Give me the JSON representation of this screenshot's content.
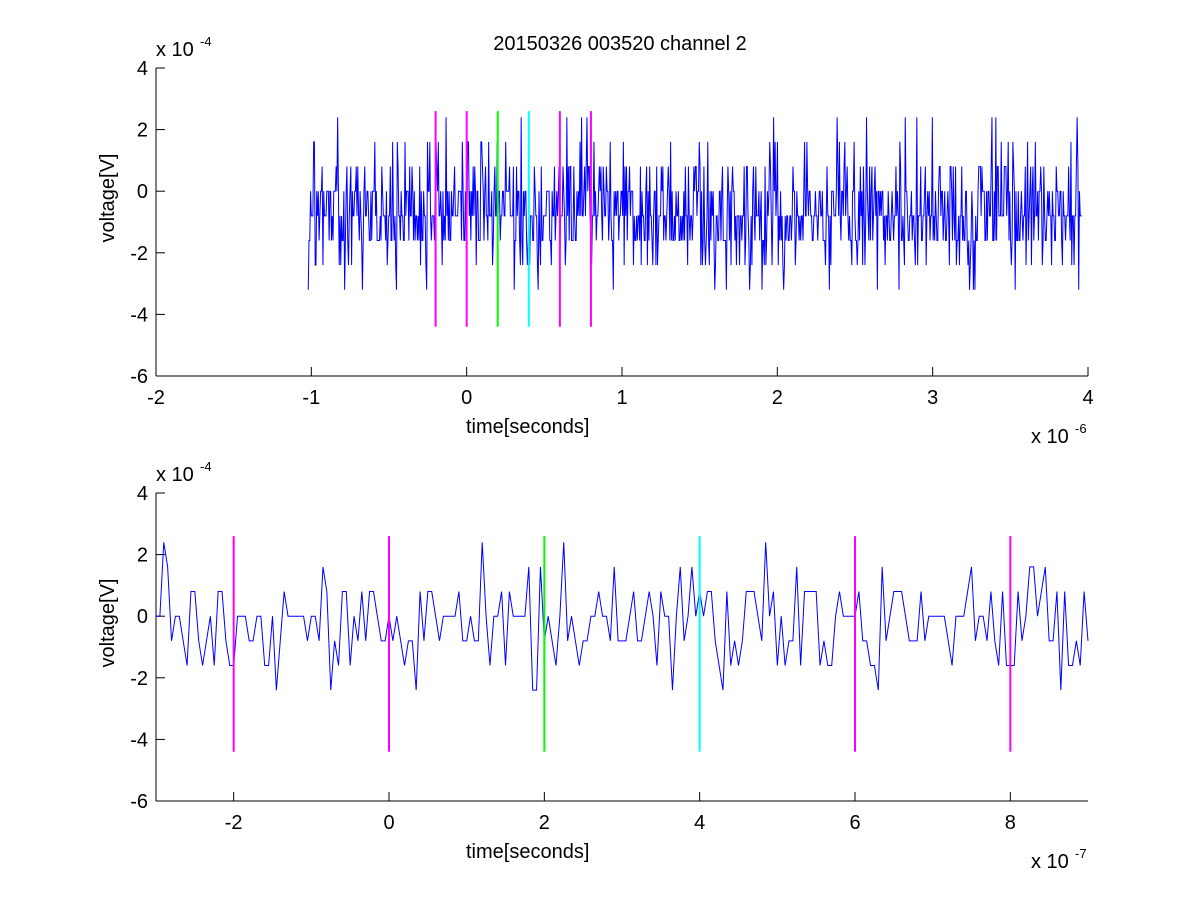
{
  "figure": {
    "title": "20150326 003520 channel 2"
  },
  "chart_data": [
    {
      "type": "line",
      "title": "20150326 003520 channel 2",
      "xlabel": "time[seconds]",
      "ylabel": "voltage[V]",
      "x_multiplier_label": "x 10",
      "x_multiplier_exp": "-6",
      "y_multiplier_label": "x 10",
      "y_multiplier_exp": "-4",
      "xlim": [
        -2e-06,
        4e-06
      ],
      "ylim": [
        -0.0006,
        0.0004
      ],
      "x_ticks": [
        -2e-06,
        -1e-06,
        0,
        1e-06,
        2e-06,
        3e-06,
        4e-06
      ],
      "x_tick_labels": [
        "-2",
        "-1",
        "0",
        "1",
        "2",
        "3",
        "4"
      ],
      "y_ticks": [
        -0.0006,
        -0.0004,
        -0.0002,
        0,
        0.0002,
        0.0004
      ],
      "y_tick_labels": [
        "-6",
        "-4",
        "-2",
        "0",
        "2",
        "4"
      ],
      "grid": false,
      "series": [
        {
          "color": "#0000ff",
          "x_start": -1.02e-06,
          "x_end": 3.96e-06,
          "n_points": 1000,
          "levels": [
            -0.0004,
            -0.00032,
            -0.00024,
            -0.00016,
            -8e-05,
            0,
            8e-05,
            0.00016,
            0.00024
          ],
          "level_weights": [
            0.004,
            0.02,
            0.09,
            0.22,
            0.28,
            0.22,
            0.12,
            0.035,
            0.01
          ]
        }
      ],
      "markers": [
        {
          "x": -2e-07,
          "color": "#ff00ff",
          "y_range": [
            -0.00044,
            0.00026
          ]
        },
        {
          "x": 0,
          "color": "#ff00ff",
          "y_range": [
            -0.00044,
            0.00026
          ]
        },
        {
          "x": 2e-07,
          "color": "#00ff00",
          "y_range": [
            -0.00044,
            0.00026
          ]
        },
        {
          "x": 4e-07,
          "color": "#00ffff",
          "y_range": [
            -0.00044,
            0.00026
          ]
        },
        {
          "x": 6e-07,
          "color": "#ff00ff",
          "y_range": [
            -0.00044,
            0.00026
          ]
        },
        {
          "x": 8e-07,
          "color": "#ff00ff",
          "y_range": [
            -0.00044,
            0.00026
          ]
        }
      ]
    },
    {
      "type": "line",
      "title": "",
      "xlabel": "time[seconds]",
      "ylabel": "voltage[V]",
      "x_multiplier_label": "x 10",
      "x_multiplier_exp": "-7",
      "y_multiplier_label": "x 10",
      "y_multiplier_exp": "-4",
      "xlim": [
        -3e-07,
        9e-07
      ],
      "ylim": [
        -0.0006,
        0.0004
      ],
      "x_ticks": [
        -2e-07,
        0,
        2e-07,
        4e-07,
        6e-07,
        8e-07
      ],
      "x_tick_labels": [
        "-2",
        "0",
        "2",
        "4",
        "6",
        "8"
      ],
      "y_ticks": [
        -0.0006,
        -0.0004,
        -0.0002,
        0,
        0.0002,
        0.0004
      ],
      "y_tick_labels": [
        "-6",
        "-4",
        "-2",
        "0",
        "2",
        "4"
      ],
      "grid": false,
      "series": [
        {
          "color": "#0000ff",
          "x_start": -3e-07,
          "x_end": 9e-07,
          "n_points": 241,
          "levels": [
            -0.00024,
            -0.00016,
            -8e-05,
            0,
            8e-05,
            0.00016,
            0.00024
          ],
          "level_weights": [
            0.06,
            0.17,
            0.27,
            0.27,
            0.16,
            0.055,
            0.015
          ]
        }
      ],
      "markers": [
        {
          "x": -2e-07,
          "color": "#ff00ff",
          "y_range": [
            -0.00044,
            0.00026
          ]
        },
        {
          "x": 0,
          "color": "#ff00ff",
          "y_range": [
            -0.00044,
            0.00026
          ]
        },
        {
          "x": 2e-07,
          "color": "#00ff00",
          "y_range": [
            -0.00044,
            0.00026
          ]
        },
        {
          "x": 4e-07,
          "color": "#00ffff",
          "y_range": [
            -0.00044,
            0.00026
          ]
        },
        {
          "x": 6e-07,
          "color": "#ff00ff",
          "y_range": [
            -0.00044,
            0.00026
          ]
        },
        {
          "x": 8e-07,
          "color": "#ff00ff",
          "y_range": [
            -0.00044,
            0.00026
          ]
        }
      ]
    }
  ]
}
